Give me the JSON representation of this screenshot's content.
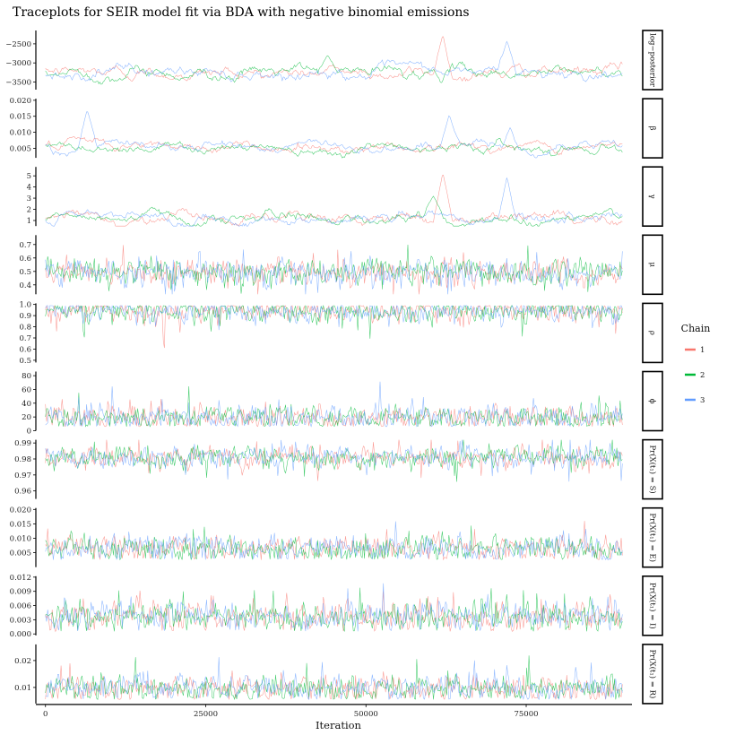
{
  "chart_data": {
    "type": "line",
    "title": "Traceplots for SEIR model fit via BDA with negative binomial emissions",
    "xlabel": "Iteration",
    "xlim": [
      -1500,
      91500
    ],
    "x_ticks": [
      0,
      25000,
      50000,
      75000
    ],
    "x_tick_labels": [
      "0",
      "25000",
      "50000",
      "75000"
    ],
    "grid": false,
    "legend": {
      "title": "Chain",
      "placement": "right",
      "entries": [
        {
          "name": "1",
          "color": "#F8766D"
        },
        {
          "name": "2",
          "color": "#00BA38"
        },
        {
          "name": "3",
          "color": "#619CFF"
        }
      ]
    },
    "n_iterations": 90000,
    "panels": [
      {
        "label": "log−posterior",
        "ylim": [
          -3700,
          -2150
        ],
        "ticks": [
          -2500,
          -3000,
          -3500
        ],
        "tick_labels": [
          "−2500",
          "−3000",
          "−3500"
        ],
        "center": -3250,
        "spread": 110,
        "mode": "slow",
        "spikes": [
          {
            "chain": 0,
            "x": 62000,
            "y": -2250
          },
          {
            "chain": 2,
            "x": 72000,
            "y": -2420
          },
          {
            "chain": 1,
            "x": 44000,
            "y": -2800
          }
        ]
      },
      {
        "label": "β",
        "ylim": [
          0.002,
          0.0205
        ],
        "ticks": [
          0.02,
          0.015,
          0.01,
          0.005
        ],
        "tick_labels": [
          "0.020",
          "0.015",
          "0.010",
          "0.005"
        ],
        "center": 0.0055,
        "spread": 0.0011,
        "mode": "slow",
        "spikes": [
          {
            "chain": 2,
            "x": 6500,
            "y": 0.017
          },
          {
            "chain": 2,
            "x": 63000,
            "y": 0.0155
          },
          {
            "chain": 2,
            "x": 72500,
            "y": 0.0115
          }
        ]
      },
      {
        "label": "γ",
        "ylim": [
          0.5,
          5.8
        ],
        "ticks": [
          5,
          4,
          3,
          2,
          1
        ],
        "tick_labels": [
          "5",
          "4",
          "3",
          "2",
          "1"
        ],
        "center": 1.25,
        "spread": 0.35,
        "mode": "slow",
        "spikes": [
          {
            "chain": 0,
            "x": 62000,
            "y": 5.3
          },
          {
            "chain": 2,
            "x": 72000,
            "y": 4.9
          },
          {
            "chain": 1,
            "x": 60500,
            "y": 3.2
          }
        ]
      },
      {
        "label": "μ",
        "ylim": [
          0.33,
          0.77
        ],
        "ticks": [
          0.7,
          0.6,
          0.5,
          0.4
        ],
        "tick_labels": [
          "0.7",
          "0.6",
          "0.5",
          "0.4"
        ],
        "center": 0.49,
        "spread": 0.05,
        "mode": "fast",
        "spikes": []
      },
      {
        "label": "ρ",
        "ylim": [
          0.48,
          1.01
        ],
        "ticks": [
          1.0,
          0.9,
          0.8,
          0.7,
          0.6,
          0.5
        ],
        "tick_labels": [
          "1.0",
          "0.9",
          "0.8",
          "0.7",
          "0.6",
          "0.5"
        ],
        "center": 0.94,
        "spread": 0.05,
        "mode": "fast",
        "upper": 0.985,
        "spikes": [
          {
            "chain": 0,
            "x": 18500,
            "y": 0.5
          },
          {
            "chain": 1,
            "x": 6000,
            "y": 0.57
          }
        ]
      },
      {
        "label": "ϕ",
        "ylim": [
          0,
          86
        ],
        "ticks": [
          80,
          60,
          40,
          20,
          0
        ],
        "tick_labels": [
          "80",
          "60",
          "40",
          "20",
          "0"
        ],
        "center": 19,
        "spread": 9,
        "mode": "fast",
        "lower": 6,
        "spikes": []
      },
      {
        "label": "Pr(X(t₁) = S)",
        "ylim": [
          0.955,
          0.992
        ],
        "ticks": [
          0.99,
          0.98,
          0.97,
          0.96
        ],
        "tick_labels": [
          "0.99",
          "0.98",
          "0.97",
          "0.96"
        ],
        "center": 0.981,
        "spread": 0.0035,
        "mode": "fast",
        "spikes": []
      },
      {
        "label": "Pr(X(t₁) = E)",
        "ylim": [
          0.0,
          0.0205
        ],
        "ticks": [
          0.02,
          0.015,
          0.01,
          0.005
        ],
        "tick_labels": [
          "0.020",
          "0.015",
          "0.010",
          "0.005"
        ],
        "center": 0.0065,
        "spread": 0.0022,
        "mode": "fast",
        "lower": 0.0025,
        "spikes": []
      },
      {
        "label": "Pr(X(t₁) = I)",
        "ylim": [
          -0.0003,
          0.0122
        ],
        "ticks": [
          0.012,
          0.009,
          0.006,
          0.003,
          0.0
        ],
        "tick_labels": [
          "0.012",
          "0.009",
          "0.006",
          "0.003",
          "0.000"
        ],
        "center": 0.0036,
        "spread": 0.0015,
        "mode": "fast",
        "lower": 0.0005,
        "spikes": []
      },
      {
        "label": "Pr(X(t₁) = R)",
        "ylim": [
          0.004,
          0.026
        ],
        "ticks": [
          0.02,
          0.01
        ],
        "tick_labels": [
          "0.02",
          "0.01"
        ],
        "center": 0.0095,
        "spread": 0.0025,
        "mode": "fast",
        "lower": 0.0055,
        "spikes": []
      }
    ]
  }
}
